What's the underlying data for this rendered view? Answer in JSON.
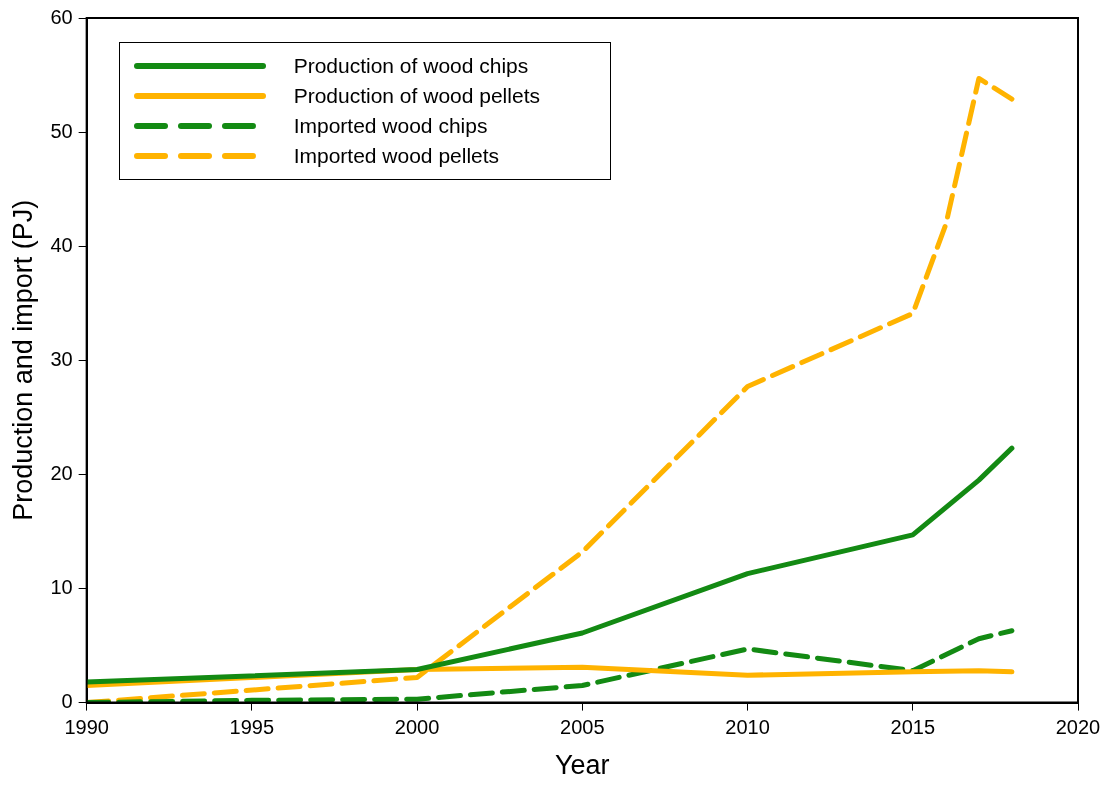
{
  "chart_data": {
    "type": "line",
    "xlabel": "Year",
    "ylabel": "Production and import (PJ)",
    "xlim": [
      1990,
      2020
    ],
    "xticks": [
      1990,
      1995,
      2000,
      2005,
      2010,
      2015,
      2020
    ],
    "ylim": [
      0,
      60
    ],
    "yticks": [
      0,
      10,
      20,
      30,
      40,
      50,
      60
    ],
    "grid": false,
    "legend": "top left",
    "marker": "none",
    "series": [
      {
        "name": "Production of wood chips",
        "color": "#138a13",
        "line_style": "solid",
        "x": [
          1990,
          2000,
          2005,
          2010,
          2015,
          2017,
          2018
        ],
        "values": [
          1.8,
          2.9,
          6.1,
          11.3,
          14.7,
          19.5,
          22.3
        ]
      },
      {
        "name": "Production of wood pellets",
        "color": "#ffb300",
        "line_style": "solid",
        "x": [
          1990,
          2000,
          2005,
          2010,
          2015,
          2017,
          2018
        ],
        "values": [
          1.5,
          2.9,
          3.1,
          2.4,
          2.7,
          2.8,
          2.7
        ]
      },
      {
        "name": "Imported wood chips",
        "color": "#138a13",
        "line_style": "dashed",
        "x": [
          1990,
          1995,
          2000,
          2005,
          2010,
          2015,
          2017,
          2018
        ],
        "values": [
          0,
          0.2,
          0.3,
          1.5,
          4.7,
          2.8,
          5.6,
          6.3
        ]
      },
      {
        "name": "Imported wood pellets",
        "color": "#ffb300",
        "line_style": "dashed",
        "x": [
          1990,
          2000,
          2005,
          2010,
          2015,
          2016,
          2017,
          2018
        ],
        "values": [
          0,
          2.2,
          13.2,
          27.7,
          34.1,
          41.9,
          54.7,
          52.9
        ]
      }
    ]
  }
}
